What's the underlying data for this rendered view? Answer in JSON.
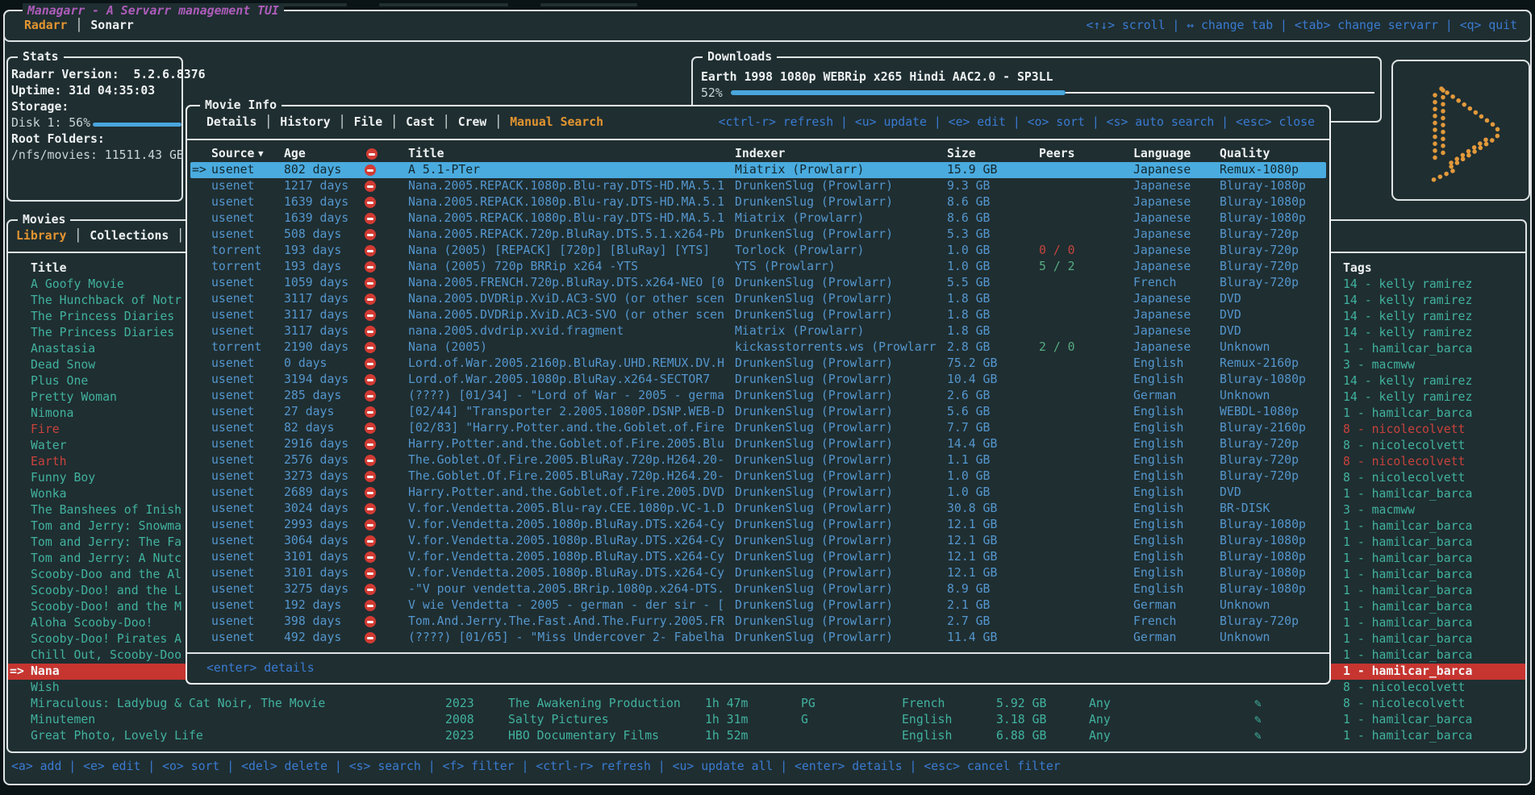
{
  "app": {
    "title": "Managarr - A Servarr management TUI",
    "tabs": [
      "Radarr",
      "Sonarr"
    ],
    "active_tab": "Radarr",
    "header_hints": "<↑↓> scroll | ↔ change tab | <tab> change servarr | <q> quit"
  },
  "stats": {
    "panel_title": "Stats",
    "version_line": "Radarr Version:  5.2.6.8376",
    "uptime_line": "Uptime: 31d 04:35:03",
    "storage_label": "Storage:",
    "disk_line": "Disk 1: 56%",
    "disk_percent": 56,
    "root_label": "Root Folders:",
    "root_line": "/nfs/movies: 11511.43 GB"
  },
  "downloads": {
    "panel_title": "Downloads",
    "item": "Earth 1998 1080p WEBRip x265 Hindi AAC2.0 - SP3LL",
    "percent_label": "52%",
    "percent": 52
  },
  "movie_info": {
    "panel_title": "Movie Info",
    "tabs": [
      "Details",
      "History",
      "File",
      "Cast",
      "Crew",
      "Manual Search"
    ],
    "active_tab": "Manual Search",
    "hints": "<ctrl-r> refresh | <u> update | <e> edit | <o> sort | <s> auto search | <esc> close",
    "selection_marker": "=>",
    "sort_indicator": "▼",
    "columns": {
      "source": "Source",
      "age": "Age",
      "title": "Title",
      "indexer": "Indexer",
      "size": "Size",
      "peers": "Peers",
      "language": "Language",
      "quality": "Quality"
    },
    "footer_hint": "<enter> details",
    "results": [
      {
        "selected": true,
        "source": "usenet",
        "age": "802 days",
        "title": "A 5.1-PTer",
        "indexer": "Miatrix (Prowlarr)",
        "size": "15.9 GB",
        "peers": "",
        "peers_state": "none",
        "language": "Japanese",
        "quality": "Remux-1080p"
      },
      {
        "source": "usenet",
        "age": "1217 days",
        "title": "Nana.2005.REPACK.1080p.Blu-ray.DTS-HD.MA.5.1",
        "indexer": "DrunkenSlug (Prowlarr)",
        "size": "9.3 GB",
        "peers": "",
        "peers_state": "none",
        "language": "Japanese",
        "quality": "Bluray-1080p"
      },
      {
        "source": "usenet",
        "age": "1639 days",
        "title": "Nana.2005.REPACK.1080p.Blu-ray.DTS-HD.MA.5.1",
        "indexer": "DrunkenSlug (Prowlarr)",
        "size": "8.6 GB",
        "peers": "",
        "peers_state": "none",
        "language": "Japanese",
        "quality": "Bluray-1080p"
      },
      {
        "source": "usenet",
        "age": "1639 days",
        "title": "Nana.2005.REPACK.1080p.Blu-ray.DTS-HD.MA.5.1",
        "indexer": "Miatrix (Prowlarr)",
        "size": "8.6 GB",
        "peers": "",
        "peers_state": "none",
        "language": "Japanese",
        "quality": "Bluray-1080p"
      },
      {
        "source": "usenet",
        "age": "508 days",
        "title": "Nana.2005.REPACK.720p.BluRay.DTS.5.1.x264-Pb",
        "indexer": "DrunkenSlug (Prowlarr)",
        "size": "5.3 GB",
        "peers": "",
        "peers_state": "none",
        "language": "Japanese",
        "quality": "Bluray-720p"
      },
      {
        "source": "torrent",
        "age": "193 days",
        "title": "Nana (2005) [REPACK] [720p] [BluRay] [YTS]",
        "indexer": "Torlock (Prowlarr)",
        "size": "1.0 GB",
        "peers": "0 / 0",
        "peers_state": "bad",
        "language": "Japanese",
        "quality": "Bluray-720p"
      },
      {
        "source": "torrent",
        "age": "193 days",
        "title": "Nana (2005) 720p BRRip x264 -YTS",
        "indexer": "YTS (Prowlarr)",
        "size": "1.0 GB",
        "peers": "5 / 2",
        "peers_state": "good",
        "language": "Japanese",
        "quality": "Bluray-720p"
      },
      {
        "source": "usenet",
        "age": "1059 days",
        "title": "Nana.2005.FRENCH.720p.BluRay.DTS.x264-NEO [0",
        "indexer": "DrunkenSlug (Prowlarr)",
        "size": "5.5 GB",
        "peers": "",
        "peers_state": "none",
        "language": "French",
        "quality": "Bluray-720p"
      },
      {
        "source": "usenet",
        "age": "3117 days",
        "title": "Nana.2005.DVDRip.XviD.AC3-SVO (or other scen",
        "indexer": "DrunkenSlug (Prowlarr)",
        "size": "1.8 GB",
        "peers": "",
        "peers_state": "none",
        "language": "Japanese",
        "quality": "DVD"
      },
      {
        "source": "usenet",
        "age": "3117 days",
        "title": "Nana.2005.DVDRip.XviD.AC3-SVO (or other scen",
        "indexer": "DrunkenSlug (Prowlarr)",
        "size": "1.8 GB",
        "peers": "",
        "peers_state": "none",
        "language": "Japanese",
        "quality": "DVD"
      },
      {
        "source": "usenet",
        "age": "3117 days",
        "title": "nana.2005.dvdrip.xvid.fragment",
        "indexer": "Miatrix (Prowlarr)",
        "size": "1.8 GB",
        "peers": "",
        "peers_state": "none",
        "language": "Japanese",
        "quality": "DVD"
      },
      {
        "source": "torrent",
        "age": "2190 days",
        "title": "Nana (2005)",
        "indexer": "kickasstorrents.ws (Prowlarr",
        "size": "2.8 GB",
        "peers": "2 / 0",
        "peers_state": "good",
        "language": "Japanese",
        "quality": "Unknown"
      },
      {
        "source": "usenet",
        "age": "0 days",
        "title": "Lord.of.War.2005.2160p.BluRay.UHD.REMUX.DV.H",
        "indexer": "DrunkenSlug (Prowlarr)",
        "size": "75.2 GB",
        "peers": "",
        "peers_state": "none",
        "language": "English",
        "quality": "Remux-2160p"
      },
      {
        "source": "usenet",
        "age": "3194 days",
        "title": "Lord.of.War.2005.1080p.BluRay.x264-SECTOR7",
        "indexer": "DrunkenSlug (Prowlarr)",
        "size": "10.4 GB",
        "peers": "",
        "peers_state": "none",
        "language": "English",
        "quality": "Bluray-1080p"
      },
      {
        "source": "usenet",
        "age": "285 days",
        "title": "(????) [01/34] - \"Lord of War - 2005 - germa",
        "indexer": "DrunkenSlug (Prowlarr)",
        "size": "2.6 GB",
        "peers": "",
        "peers_state": "none",
        "language": "German",
        "quality": "Unknown"
      },
      {
        "source": "usenet",
        "age": "27 days",
        "title": "[02/44] \"Transporter 2.2005.1080P.DSNP.WEB-D",
        "indexer": "DrunkenSlug (Prowlarr)",
        "size": "5.6 GB",
        "peers": "",
        "peers_state": "none",
        "language": "English",
        "quality": "WEBDL-1080p"
      },
      {
        "source": "usenet",
        "age": "82 days",
        "title": "[02/83] \"Harry.Potter.and.the.Goblet.of.Fire",
        "indexer": "DrunkenSlug (Prowlarr)",
        "size": "7.7 GB",
        "peers": "",
        "peers_state": "none",
        "language": "English",
        "quality": "Bluray-2160p"
      },
      {
        "source": "usenet",
        "age": "2916 days",
        "title": "Harry.Potter.and.the.Goblet.of.Fire.2005.Blu",
        "indexer": "DrunkenSlug (Prowlarr)",
        "size": "14.4 GB",
        "peers": "",
        "peers_state": "none",
        "language": "English",
        "quality": "Bluray-720p"
      },
      {
        "source": "usenet",
        "age": "2576 days",
        "title": "The.Goblet.Of.Fire.2005.BluRay.720p.H264.20-",
        "indexer": "DrunkenSlug (Prowlarr)",
        "size": "1.1 GB",
        "peers": "",
        "peers_state": "none",
        "language": "English",
        "quality": "Bluray-720p"
      },
      {
        "source": "usenet",
        "age": "3273 days",
        "title": "The.Goblet.Of.Fire.2005.BluRay.720p.H264.20-",
        "indexer": "DrunkenSlug (Prowlarr)",
        "size": "1.0 GB",
        "peers": "",
        "peers_state": "none",
        "language": "English",
        "quality": "Bluray-720p"
      },
      {
        "source": "usenet",
        "age": "2689 days",
        "title": "Harry.Potter.and.the.Goblet.of.Fire.2005.DVD",
        "indexer": "DrunkenSlug (Prowlarr)",
        "size": "1.0 GB",
        "peers": "",
        "peers_state": "none",
        "language": "English",
        "quality": "DVD"
      },
      {
        "source": "usenet",
        "age": "3024 days",
        "title": "V.for.Vendetta.2005.Blu-ray.CEE.1080p.VC-1.D",
        "indexer": "DrunkenSlug (Prowlarr)",
        "size": "30.8 GB",
        "peers": "",
        "peers_state": "none",
        "language": "English",
        "quality": "BR-DISK"
      },
      {
        "source": "usenet",
        "age": "2993 days",
        "title": "V.for.Vendetta.2005.1080p.BluRay.DTS.x264-Cy",
        "indexer": "DrunkenSlug (Prowlarr)",
        "size": "12.1 GB",
        "peers": "",
        "peers_state": "none",
        "language": "English",
        "quality": "Bluray-1080p"
      },
      {
        "source": "usenet",
        "age": "3064 days",
        "title": "V.for.Vendetta.2005.1080p.BluRay.DTS.x264-Cy",
        "indexer": "DrunkenSlug (Prowlarr)",
        "size": "12.1 GB",
        "peers": "",
        "peers_state": "none",
        "language": "English",
        "quality": "Bluray-1080p"
      },
      {
        "source": "usenet",
        "age": "3101 days",
        "title": "V.for.Vendetta.2005.1080p.BluRay.DTS.x264-Cy",
        "indexer": "DrunkenSlug (Prowlarr)",
        "size": "12.1 GB",
        "peers": "",
        "peers_state": "none",
        "language": "English",
        "quality": "Bluray-1080p"
      },
      {
        "source": "usenet",
        "age": "3101 days",
        "title": "V.for.Vendetta.2005.1080p.BluRay.DTS.x264-Cy",
        "indexer": "DrunkenSlug (Prowlarr)",
        "size": "12.1 GB",
        "peers": "",
        "peers_state": "none",
        "language": "English",
        "quality": "Bluray-1080p"
      },
      {
        "source": "usenet",
        "age": "3275 days",
        "title": "-\"V pour vendetta.2005.BRrip.1080p.x264-DTS.",
        "indexer": "DrunkenSlug (Prowlarr)",
        "size": "8.9 GB",
        "peers": "",
        "peers_state": "none",
        "language": "English",
        "quality": "Bluray-1080p"
      },
      {
        "source": "usenet",
        "age": "192 days",
        "title": "V wie Vendetta - 2005 - german - der sir - [",
        "indexer": "DrunkenSlug (Prowlarr)",
        "size": "2.1 GB",
        "peers": "",
        "peers_state": "none",
        "language": "German",
        "quality": "Unknown"
      },
      {
        "source": "usenet",
        "age": "398 days",
        "title": "Tom.And.Jerry.The.Fast.And.The.Furry.2005.FR",
        "indexer": "DrunkenSlug (Prowlarr)",
        "size": "2.7 GB",
        "peers": "",
        "peers_state": "none",
        "language": "French",
        "quality": "Bluray-720p"
      },
      {
        "source": "usenet",
        "age": "492 days",
        "title": "(????) [01/65] - \"Miss Undercover 2- Fabelha",
        "indexer": "DrunkenSlug (Prowlarr)",
        "size": "11.4 GB",
        "peers": "",
        "peers_state": "none",
        "language": "German",
        "quality": "Unknown"
      }
    ]
  },
  "movies": {
    "panel_title": "Movies",
    "tabs": [
      "Library",
      "Collections"
    ],
    "active_tab": "Library",
    "title_header": "Title",
    "tags_header": "Tags",
    "selection_marker": "=>",
    "rows": [
      {
        "title": "A Goofy Movie",
        "tag": "14 - kelly ramirez"
      },
      {
        "title": "The Hunchback of Notr",
        "tag": "14 - kelly ramirez"
      },
      {
        "title": "The Princess Diaries",
        "tag": "14 - kelly ramirez"
      },
      {
        "title": "The Princess Diaries",
        "tag": "14 - kelly ramirez"
      },
      {
        "title": "Anastasia",
        "tag": "1 - hamilcar_barca"
      },
      {
        "title": "Dead Snow",
        "tag": "3 - macmww"
      },
      {
        "title": "Plus One",
        "tag": "14 - kelly ramirez"
      },
      {
        "title": "Pretty Woman",
        "tag": "14 - kelly ramirez"
      },
      {
        "title": "Nimona",
        "tag": "1 - hamilcar_barca"
      },
      {
        "title": "Fire",
        "state": "alert",
        "tag": "8 - nicolecolvett",
        "tag_state": "alert"
      },
      {
        "title": "Water",
        "tag": "8 - nicolecolvett"
      },
      {
        "title": "Earth",
        "state": "alert",
        "tag": "8 - nicolecolvett",
        "tag_state": "alert"
      },
      {
        "title": "Funny Boy",
        "tag": "8 - nicolecolvett"
      },
      {
        "title": "Wonka",
        "tag": "1 - hamilcar_barca"
      },
      {
        "title": "The Banshees of Inish",
        "tag": "3 - macmww"
      },
      {
        "title": "Tom and Jerry: Snowma",
        "tag": "1 - hamilcar_barca"
      },
      {
        "title": "Tom and Jerry: The Fa",
        "tag": "1 - hamilcar_barca"
      },
      {
        "title": "Tom and Jerry: A Nutc",
        "tag": "1 - hamilcar_barca"
      },
      {
        "title": "Scooby-Doo and the Al",
        "tag": "1 - hamilcar_barca"
      },
      {
        "title": "Scooby-Doo! and the L",
        "tag": "1 - hamilcar_barca"
      },
      {
        "title": "Scooby-Doo! and the M",
        "tag": "1 - hamilcar_barca"
      },
      {
        "title": "Aloha Scooby-Doo!",
        "tag": "1 - hamilcar_barca"
      },
      {
        "title": "Scooby-Doo! Pirates A",
        "tag": "1 - hamilcar_barca"
      },
      {
        "title": "Chill Out, Scooby-Doo",
        "tag": "1 - hamilcar_barca"
      },
      {
        "title": "Nana",
        "state": "selected",
        "tag": "1 - hamilcar_barca"
      },
      {
        "title": "Wish",
        "tag": "8 - nicolecolvett"
      },
      {
        "title": "Miraculous: Ladybug & Cat Noir, The Movie",
        "year": "2023",
        "studio": "The Awakening Production",
        "runtime": "1h 47m",
        "rating": "PG",
        "language": "French",
        "size": "5.92 GB",
        "availability": "Any",
        "edit_icon": true,
        "tag": "8 - nicolecolvett"
      },
      {
        "title": "Minutemen",
        "year": "2008",
        "studio": "Salty Pictures",
        "runtime": "1h 31m",
        "rating": "G",
        "language": "English",
        "size": "3.18 GB",
        "availability": "Any",
        "edit_icon": true,
        "tag": "1 - hamilcar_barca"
      },
      {
        "title": "Great Photo, Lovely Life",
        "year": "2023",
        "studio": "HBO Documentary Films",
        "runtime": "1h 52m",
        "rating": "",
        "language": "English",
        "size": "6.88 GB",
        "availability": "Any",
        "edit_icon": true,
        "tag": "1 - hamilcar_barca"
      }
    ]
  },
  "bottom_hints": "<a> add | <e> edit | <o> sort | <del> delete | <s> search | <f> filter | <ctrl-r> refresh | <u> update all | <enter> details | <esc> cancel filter",
  "colors": {
    "background": "#1f2e31",
    "border": "#dfe4e5",
    "accent_orange": "#e39531",
    "accent_purple": "#ad5cba",
    "hint_blue": "#3a7bd2",
    "table_blue": "#5496cd",
    "selected_blue": "#4aabdf",
    "teal": "#41b29e",
    "alert_red": "#c8423c",
    "selected_red": "#c63530",
    "progress_blue": "#49a6dd",
    "logo_orange": "#e2993b",
    "peers_good": "#55ad82",
    "peers_bad": "#c64540"
  }
}
